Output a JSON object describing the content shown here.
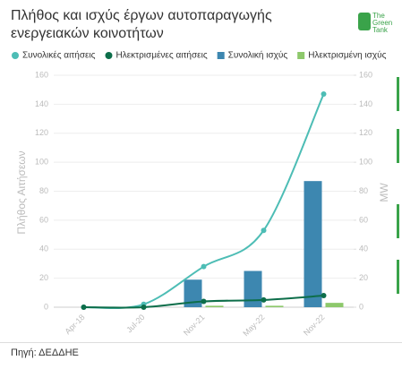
{
  "chart_data": {
    "type": "combo",
    "title": "Πλήθος και ισχύς έργων αυτοπαραγωγής ενεργειακών κοινοτήτων",
    "logo": "The Green Tank",
    "source": "Πηγή: ΔΕΔΔΗΕ",
    "y_label": "Πλήθος Αιτήσεων",
    "y2_label": "MW",
    "categories": [
      "Apr-18",
      "Jul-20",
      "Nov-21",
      "May-22",
      "Nov-22"
    ],
    "series": [
      {
        "name": "Συνολικές αιτήσεις",
        "color": "#4dbdb5",
        "kind": "line",
        "values": [
          0,
          2,
          28,
          53,
          147
        ]
      },
      {
        "name": "Ηλεκτρισμένες αιτήσεις",
        "color": "#0d6e4a",
        "kind": "line",
        "values": [
          0,
          0,
          4,
          5,
          8
        ]
      },
      {
        "name": "Συνολική ισχύς",
        "color": "#3d87b0",
        "kind": "bar",
        "axis": "y2",
        "values": [
          null,
          null,
          19,
          25,
          87
        ]
      },
      {
        "name": "Ηλεκτρισμένη ισχύς",
        "color": "#8dc86b",
        "kind": "bar",
        "axis": "y2",
        "values": [
          null,
          null,
          1,
          1,
          3
        ]
      }
    ],
    "ylim": [
      0,
      160
    ],
    "yticks": [
      0,
      20,
      40,
      60,
      80,
      100,
      120,
      140,
      160
    ],
    "y2lim": [
      0,
      160
    ],
    "y2ticks": [
      0,
      20,
      40,
      60,
      80,
      100,
      120,
      140,
      160
    ],
    "grid": true
  }
}
